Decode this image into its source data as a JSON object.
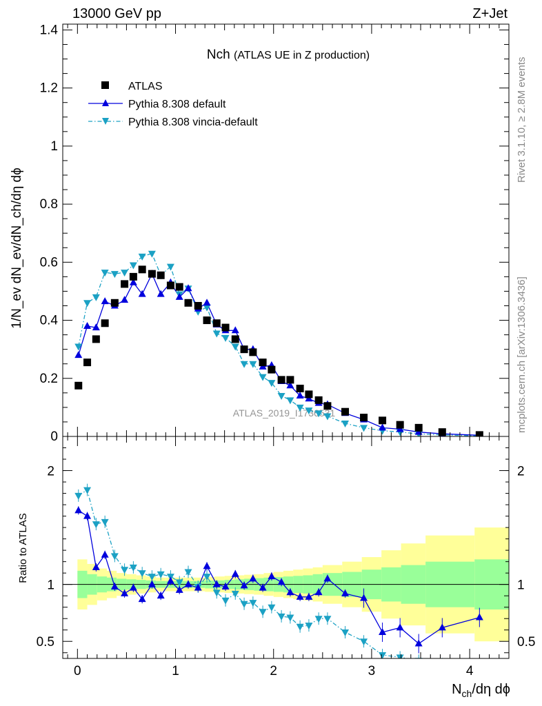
{
  "header": {
    "energy_label": "13000 GeV pp",
    "process_label": "Z+Jet"
  },
  "side_labels": {
    "rivet": "Rivet 3.1.10, ≥ 2.8M events",
    "mcplots": "mcplots.cern.ch [arXiv:1306.3436]"
  },
  "watermark": "ATLAS_2019_I1736531",
  "colors": {
    "atlas": "#000000",
    "default": "#0000dd",
    "vincia": "#1ba1c4",
    "band_stat": "#99ff99",
    "band_total": "#ffff99"
  },
  "chart_data": {
    "type": "scatter",
    "title_main": "Nch",
    "title_sub": "(ATLAS UE in Z production)",
    "xlabel_main": "N",
    "xlabel_sub": "ch",
    "xlabel_rest": "/dη dϕ",
    "ylabel": "1/N_ev dN_ev/dN_ch/dη dϕ",
    "ratio_ylabel": "Ratio to ATLAS",
    "xlim": [
      -0.15,
      4.4
    ],
    "ylim": [
      0,
      1.42
    ],
    "ratio_ylim": [
      0.35,
      2.3
    ],
    "x_ticks": [
      0,
      1,
      2,
      3,
      4
    ],
    "y_ticks": [
      0,
      0.2,
      0.4,
      0.6,
      0.8,
      1,
      1.2,
      1.4
    ],
    "ratio_ticks": [
      0.5,
      1,
      2
    ],
    "legend": [
      "ATLAS",
      "Pythia 8.308 default",
      "Pythia 8.308 vincia-default"
    ],
    "legend_position": "top-left",
    "atlas": {
      "x": [
        0.01,
        0.1,
        0.19,
        0.28,
        0.38,
        0.48,
        0.57,
        0.66,
        0.76,
        0.85,
        0.95,
        1.04,
        1.13,
        1.23,
        1.32,
        1.42,
        1.51,
        1.61,
        1.7,
        1.79,
        1.89,
        1.98,
        2.08,
        2.17,
        2.27,
        2.36,
        2.46,
        2.55,
        2.73,
        2.92,
        3.11,
        3.29,
        3.48,
        3.72,
        4.1
      ],
      "y": [
        0.175,
        0.255,
        0.335,
        0.39,
        0.46,
        0.525,
        0.55,
        0.575,
        0.56,
        0.555,
        0.52,
        0.515,
        0.46,
        0.45,
        0.4,
        0.39,
        0.375,
        0.335,
        0.3,
        0.29,
        0.255,
        0.23,
        0.195,
        0.195,
        0.165,
        0.145,
        0.125,
        0.105,
        0.085,
        0.065,
        0.055,
        0.04,
        0.03,
        0.015,
        0.005
      ]
    },
    "series": [
      {
        "name": "Pythia 8.308 default",
        "x": [
          0.01,
          0.1,
          0.19,
          0.28,
          0.38,
          0.48,
          0.57,
          0.66,
          0.76,
          0.85,
          0.95,
          1.04,
          1.13,
          1.23,
          1.32,
          1.42,
          1.51,
          1.61,
          1.7,
          1.79,
          1.89,
          1.98,
          2.08,
          2.17,
          2.27,
          2.36,
          2.46,
          2.55,
          2.73,
          2.92,
          3.11,
          3.29,
          3.48,
          3.72,
          4.1
        ],
        "y": [
          0.28,
          0.38,
          0.375,
          0.465,
          0.45,
          0.47,
          0.53,
          0.49,
          0.56,
          0.49,
          0.53,
          0.48,
          0.51,
          0.44,
          0.46,
          0.385,
          0.365,
          0.365,
          0.3,
          0.3,
          0.24,
          0.245,
          0.19,
          0.175,
          0.14,
          0.13,
          0.115,
          0.11,
          0.08,
          0.058,
          0.03,
          0.025,
          0.015,
          0.009,
          0.004
        ],
        "ratio": [
          1.65,
          1.6,
          1.15,
          1.26,
          0.98,
          0.92,
          0.97,
          0.87,
          1.0,
          0.9,
          1.03,
          0.95,
          1.0,
          0.97,
          1.16,
          1.0,
          0.98,
          1.09,
          0.99,
          1.05,
          0.97,
          1.07,
          1.02,
          0.93,
          0.89,
          0.89,
          0.93,
          1.05,
          0.92,
          0.88,
          0.58,
          0.62,
          0.48,
          0.62,
          0.71
        ]
      },
      {
        "name": "Pythia 8.308 vincia-default",
        "x": [
          0.01,
          0.1,
          0.19,
          0.28,
          0.38,
          0.48,
          0.57,
          0.66,
          0.76,
          0.85,
          0.95,
          1.04,
          1.13,
          1.23,
          1.32,
          1.42,
          1.51,
          1.61,
          1.7,
          1.79,
          1.89,
          1.98,
          2.08,
          2.17,
          2.27,
          2.36,
          2.46,
          2.55,
          2.73,
          2.92,
          3.11,
          3.29,
          3.48,
          3.72,
          4.1
        ],
        "y": [
          0.31,
          0.46,
          0.48,
          0.565,
          0.56,
          0.565,
          0.59,
          0.62,
          0.63,
          0.555,
          0.585,
          0.49,
          0.51,
          0.43,
          0.445,
          0.355,
          0.34,
          0.31,
          0.25,
          0.25,
          0.205,
          0.185,
          0.14,
          0.125,
          0.1,
          0.09,
          0.08,
          0.07,
          0.045,
          0.03,
          0.02,
          0.015,
          0.009,
          0.005,
          0.002
        ],
        "ratio": [
          1.78,
          1.83,
          1.53,
          1.55,
          1.25,
          1.13,
          1.15,
          1.1,
          1.07,
          1.09,
          1.07,
          1.02,
          1.11,
          0.98,
          1.07,
          0.93,
          0.86,
          0.92,
          0.83,
          0.84,
          0.76,
          0.8,
          0.72,
          0.71,
          0.63,
          0.64,
          0.7,
          0.7,
          0.58,
          0.5,
          0.38,
          0.36,
          0.33,
          0.3,
          0.25
        ]
      }
    ],
    "ratio_bands": {
      "edges": [
        0.0,
        0.1,
        0.2,
        0.3,
        0.4,
        0.5,
        0.6,
        0.7,
        0.8,
        0.9,
        1.0,
        1.1,
        1.2,
        1.3,
        1.4,
        1.5,
        1.6,
        1.7,
        1.8,
        1.9,
        2.0,
        2.1,
        2.2,
        2.3,
        2.4,
        2.5,
        2.7,
        2.9,
        3.1,
        3.3,
        3.55,
        4.05,
        4.4
      ],
      "stat_halfwidth": [
        0.12,
        0.09,
        0.07,
        0.06,
        0.05,
        0.045,
        0.04,
        0.035,
        0.03,
        0.03,
        0.03,
        0.03,
        0.03,
        0.035,
        0.035,
        0.04,
        0.045,
        0.05,
        0.055,
        0.06,
        0.065,
        0.07,
        0.075,
        0.08,
        0.09,
        0.1,
        0.11,
        0.13,
        0.15,
        0.17,
        0.2,
        0.22
      ],
      "total_halfwidth": [
        0.22,
        0.18,
        0.14,
        0.12,
        0.1,
        0.09,
        0.08,
        0.07,
        0.06,
        0.06,
        0.06,
        0.06,
        0.06,
        0.065,
        0.07,
        0.075,
        0.08,
        0.085,
        0.09,
        0.1,
        0.11,
        0.12,
        0.13,
        0.14,
        0.15,
        0.17,
        0.2,
        0.24,
        0.3,
        0.36,
        0.43,
        0.5
      ]
    }
  }
}
